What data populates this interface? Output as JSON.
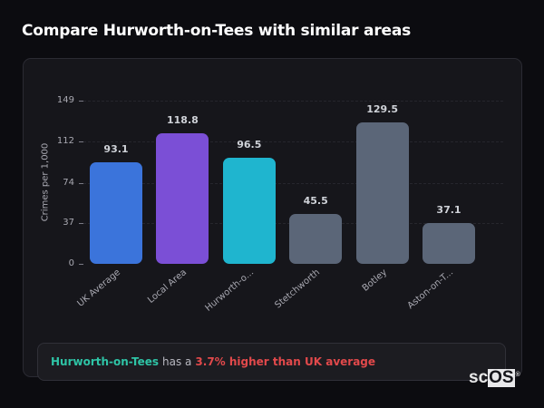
{
  "header": {
    "title": "Compare Hurworth-on-Tees with similar areas"
  },
  "chart_data": {
    "type": "bar",
    "title": "Compare Hurworth-on-Tees with similar areas",
    "xlabel": "",
    "ylabel": "Crimes per 1,000",
    "ylim": [
      0,
      149
    ],
    "y_ticks": [
      0,
      37,
      74,
      112,
      149
    ],
    "grid": true,
    "legend": null,
    "categories": [
      "UK Average",
      "Local Area",
      "Hurworth-o...",
      "Stetchworth",
      "Botley",
      "Aston-on-T..."
    ],
    "values": [
      93.1,
      118.8,
      96.5,
      45.5,
      129.5,
      37.1
    ],
    "value_labels": [
      "93.1",
      "118.8",
      "96.5",
      "45.5",
      "129.5",
      "37.1"
    ],
    "colors": [
      "#3b74db",
      "#7b4fd6",
      "#1fb5cf",
      "#5b6678",
      "#5b6678",
      "#5b6678"
    ]
  },
  "summary": {
    "area": "Hurworth-on-Tees",
    "connector": "has a",
    "comparison": "3.7% higher than UK average",
    "comparison_color": "#e2494b",
    "area_color": "#2ec4a6"
  },
  "branding": {
    "logo_sc": "sc",
    "logo_os": "OS",
    "logo_mark": "®"
  }
}
